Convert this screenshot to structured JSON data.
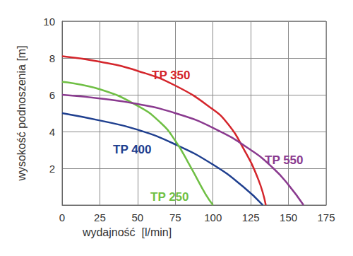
{
  "chart_data": {
    "type": "line",
    "x_label": "wydajność  [l/min]",
    "y_label": "wysokość podnoszenia [m]",
    "xlim": [
      0,
      175
    ],
    "xticks": [
      0,
      25,
      50,
      75,
      100,
      125,
      150,
      175
    ],
    "ylim": [
      0,
      10
    ],
    "yticks": [
      2,
      4,
      6,
      8,
      10
    ],
    "grid": true,
    "series": [
      {
        "name": "TP 350",
        "color": "#d4252b",
        "x": [
          0,
          25,
          50,
          75,
          100,
          110,
          120,
          130,
          135
        ],
        "values": [
          8.1,
          7.8,
          7.3,
          6.5,
          5.2,
          4.4,
          3.1,
          1.4,
          0
        ]
      },
      {
        "name": "TP 400",
        "color": "#1f3f8f",
        "x": [
          0,
          25,
          50,
          75,
          100,
          120,
          133
        ],
        "values": [
          5.0,
          4.6,
          4.1,
          3.3,
          2.2,
          1.0,
          0
        ]
      },
      {
        "name": "TP 250",
        "color": "#6fbf44",
        "x": [
          0,
          25,
          50,
          65,
          75,
          85,
          95,
          100
        ],
        "values": [
          6.7,
          6.3,
          5.4,
          4.5,
          3.5,
          2.1,
          0.6,
          0
        ]
      },
      {
        "name": "TP 550",
        "color": "#8a3a8f",
        "x": [
          0,
          25,
          50,
          75,
          100,
          125,
          140,
          150,
          160
        ],
        "values": [
          6.0,
          5.8,
          5.5,
          5.0,
          4.2,
          3.0,
          2.0,
          1.1,
          0
        ]
      }
    ]
  }
}
